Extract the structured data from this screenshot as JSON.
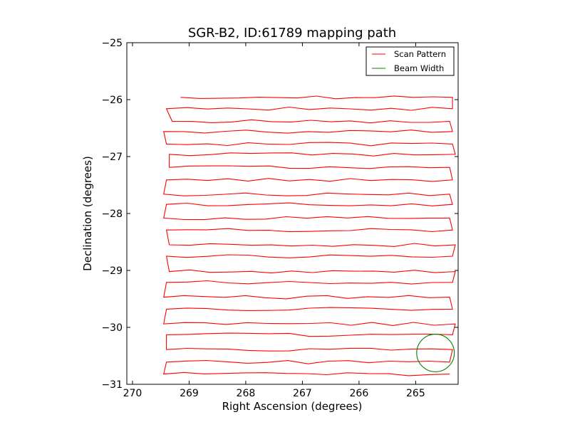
{
  "chart_data": {
    "type": "line",
    "title": "SGR-B2, ID:61789 mapping path",
    "xlabel": "Right Ascension (degrees)",
    "ylabel": "Declination (degrees)",
    "xlim": [
      270.1,
      264.25
    ],
    "ylim": [
      -31,
      -25
    ],
    "x_ticks": [
      270,
      269,
      268,
      267,
      266,
      265
    ],
    "y_ticks": [
      -25,
      -26,
      -27,
      -28,
      -29,
      -30,
      -31
    ],
    "x_tick_labels": [
      "270",
      "269",
      "268",
      "267",
      "266",
      "265"
    ],
    "y_tick_labels": [
      "−25",
      "−26",
      "−27",
      "−28",
      "−29",
      "−30",
      "−31"
    ],
    "grid": false,
    "legend_position": "top-right",
    "series": [
      {
        "name": "Scan Pattern",
        "color": "#ff0000",
        "start": [
          269.15,
          -25.96
        ],
        "end": [
          264.4,
          -30.82
        ],
        "rows_dec": [
          -25.96,
          -26.16,
          -26.38,
          -26.56,
          -26.78,
          -26.96,
          -27.19,
          -27.41,
          -27.66,
          -27.84,
          -28.08,
          -28.29,
          -28.55,
          -28.75,
          -29.02,
          -29.21,
          -29.47,
          -29.68,
          -29.94,
          -30.13,
          -30.39,
          -30.61,
          -30.82
        ],
        "ra_left": [
          269.15,
          269.4,
          269.3,
          269.45,
          269.4,
          269.35,
          269.35,
          269.4,
          269.45,
          269.4,
          269.45,
          269.4,
          269.35,
          269.4,
          269.35,
          269.4,
          269.45,
          269.4,
          269.45,
          269.4,
          269.4,
          269.4,
          269.45
        ],
        "ra_right": [
          264.35,
          264.35,
          264.4,
          264.35,
          264.35,
          264.3,
          264.4,
          264.35,
          264.4,
          264.35,
          264.4,
          264.35,
          264.3,
          264.35,
          264.3,
          264.35,
          264.4,
          264.35,
          264.3,
          264.35,
          264.35,
          264.4,
          264.4
        ]
      },
      {
        "name": "Beam Width",
        "color": "#008000",
        "center": [
          264.65,
          -30.45
        ],
        "radius_deg": 0.33
      }
    ]
  }
}
